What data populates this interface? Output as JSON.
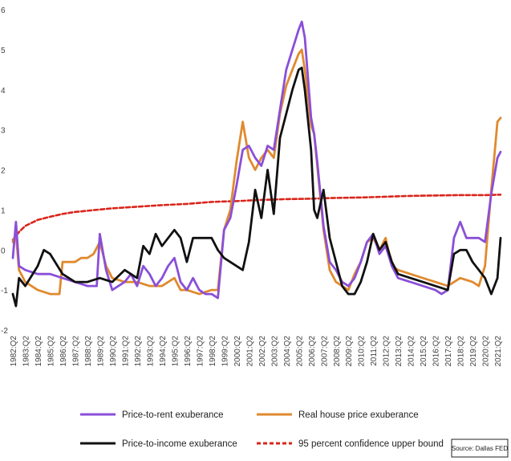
{
  "chart_data": {
    "type": "line",
    "title": "",
    "xlabel": "",
    "ylabel": "",
    "ylim": [
      -2,
      6
    ],
    "yticks": [
      "-2",
      "-1",
      "0",
      "1",
      "2",
      "3",
      "4",
      "5",
      "6"
    ],
    "grid": false,
    "legend_position": "bottom",
    "x_categories": [
      "1982:Q2",
      "1983:Q2",
      "1984:Q2",
      "1985:Q2",
      "1986:Q2",
      "1987:Q2",
      "1988:Q2",
      "1989:Q2",
      "1990:Q2",
      "1991:Q2",
      "1992:Q2",
      "1993:Q2",
      "1994:Q2",
      "1995:Q2",
      "1996:Q2",
      "1997:Q2",
      "1998:Q2",
      "1999:Q2",
      "2000:Q2",
      "2001:Q2",
      "2002:Q2",
      "2003:Q2",
      "2004:Q2",
      "2005:Q2",
      "2006:Q2",
      "2007:Q2",
      "2008:Q2",
      "2009:Q2",
      "2010:Q2",
      "2011:Q2",
      "2012:Q2",
      "2013:Q2",
      "2014:Q2",
      "2015:Q2",
      "2016:Q2",
      "2017:Q2",
      "2018:Q2",
      "2019:Q2",
      "2020:Q2",
      "2021:Q2"
    ],
    "series": [
      {
        "name": "Price-to-rent exuberance",
        "color": "#8a4fd8",
        "dash": "",
        "points": [
          [
            1982.0,
            -0.2
          ],
          [
            1982.25,
            0.7
          ],
          [
            1982.5,
            -0.4
          ],
          [
            1983.0,
            -0.5
          ],
          [
            1984.0,
            -0.6
          ],
          [
            1985.0,
            -0.6
          ],
          [
            1986.0,
            -0.7
          ],
          [
            1987.0,
            -0.8
          ],
          [
            1988.0,
            -0.9
          ],
          [
            1988.75,
            -0.9
          ],
          [
            1989.0,
            0.4
          ],
          [
            1989.5,
            -0.5
          ],
          [
            1990.0,
            -1.0
          ],
          [
            1991.0,
            -0.8
          ],
          [
            1991.5,
            -0.6
          ],
          [
            1992.0,
            -0.9
          ],
          [
            1992.5,
            -0.4
          ],
          [
            1993.0,
            -0.6
          ],
          [
            1993.5,
            -0.9
          ],
          [
            1994.0,
            -0.7
          ],
          [
            1994.5,
            -0.4
          ],
          [
            1995.0,
            -0.2
          ],
          [
            1995.5,
            -0.8
          ],
          [
            1996.0,
            -1.0
          ],
          [
            1996.5,
            -0.7
          ],
          [
            1997.0,
            -1.0
          ],
          [
            1997.5,
            -1.1
          ],
          [
            1998.0,
            -1.1
          ],
          [
            1998.5,
            -1.2
          ],
          [
            1999.0,
            0.5
          ],
          [
            1999.5,
            0.8
          ],
          [
            2000.0,
            1.6
          ],
          [
            2000.5,
            2.5
          ],
          [
            2001.0,
            2.6
          ],
          [
            2001.5,
            2.3
          ],
          [
            2002.0,
            2.1
          ],
          [
            2002.5,
            2.6
          ],
          [
            2003.0,
            2.5
          ],
          [
            2003.5,
            3.5
          ],
          [
            2004.0,
            4.5
          ],
          [
            2004.5,
            5.0
          ],
          [
            2005.0,
            5.5
          ],
          [
            2005.25,
            5.7
          ],
          [
            2005.5,
            5.3
          ],
          [
            2006.0,
            3.3
          ],
          [
            2006.25,
            2.9
          ],
          [
            2006.5,
            2.2
          ],
          [
            2007.0,
            0.6
          ],
          [
            2007.5,
            -0.3
          ],
          [
            2008.0,
            -0.5
          ],
          [
            2008.5,
            -0.8
          ],
          [
            2009.0,
            -0.9
          ],
          [
            2009.5,
            -0.7
          ],
          [
            2010.0,
            -0.3
          ],
          [
            2010.5,
            0.2
          ],
          [
            2011.0,
            0.4
          ],
          [
            2011.5,
            -0.1
          ],
          [
            2012.0,
            0.1
          ],
          [
            2012.5,
            -0.4
          ],
          [
            2013.0,
            -0.7
          ],
          [
            2014.0,
            -0.8
          ],
          [
            2015.0,
            -0.9
          ],
          [
            2016.0,
            -1.0
          ],
          [
            2016.5,
            -1.1
          ],
          [
            2017.0,
            -1.0
          ],
          [
            2017.5,
            0.3
          ],
          [
            2018.0,
            0.7
          ],
          [
            2018.5,
            0.3
          ],
          [
            2019.0,
            0.3
          ],
          [
            2019.5,
            0.3
          ],
          [
            2020.0,
            0.2
          ],
          [
            2020.5,
            1.4
          ],
          [
            2021.0,
            2.3
          ],
          [
            2021.25,
            2.45
          ]
        ]
      },
      {
        "name": "Real house price exuberance",
        "color": "#e08a2e",
        "dash": "",
        "points": [
          [
            1982.0,
            0.2
          ],
          [
            1982.25,
            0.4
          ],
          [
            1982.5,
            -0.5
          ],
          [
            1983.0,
            -0.8
          ],
          [
            1984.0,
            -1.0
          ],
          [
            1985.0,
            -1.1
          ],
          [
            1985.75,
            -1.1
          ],
          [
            1986.0,
            -0.3
          ],
          [
            1987.0,
            -0.3
          ],
          [
            1987.5,
            -0.2
          ],
          [
            1988.0,
            -0.2
          ],
          [
            1988.5,
            -0.1
          ],
          [
            1989.0,
            0.2
          ],
          [
            1989.5,
            -0.4
          ],
          [
            1990.0,
            -0.7
          ],
          [
            1991.0,
            -0.8
          ],
          [
            1992.0,
            -0.8
          ],
          [
            1993.0,
            -0.9
          ],
          [
            1994.0,
            -0.9
          ],
          [
            1995.0,
            -0.7
          ],
          [
            1995.5,
            -1.0
          ],
          [
            1996.0,
            -1.0
          ],
          [
            1997.0,
            -1.1
          ],
          [
            1998.0,
            -1.0
          ],
          [
            1998.5,
            -1.0
          ],
          [
            1999.0,
            0.5
          ],
          [
            1999.5,
            1.0
          ],
          [
            2000.0,
            2.2
          ],
          [
            2000.5,
            3.2
          ],
          [
            2001.0,
            2.3
          ],
          [
            2001.5,
            2.0
          ],
          [
            2002.0,
            2.3
          ],
          [
            2002.5,
            2.5
          ],
          [
            2003.0,
            2.3
          ],
          [
            2003.5,
            3.4
          ],
          [
            2004.0,
            4.1
          ],
          [
            2004.5,
            4.5
          ],
          [
            2005.0,
            4.9
          ],
          [
            2005.25,
            5.0
          ],
          [
            2005.5,
            4.5
          ],
          [
            2006.0,
            3.1
          ],
          [
            2006.25,
            2.9
          ],
          [
            2006.5,
            2.1
          ],
          [
            2007.0,
            0.5
          ],
          [
            2007.5,
            -0.5
          ],
          [
            2008.0,
            -0.8
          ],
          [
            2008.5,
            -0.9
          ],
          [
            2009.0,
            -1.0
          ],
          [
            2009.5,
            -0.6
          ],
          [
            2010.0,
            -0.3
          ],
          [
            2010.5,
            0.2
          ],
          [
            2011.0,
            0.3
          ],
          [
            2011.5,
            0.0
          ],
          [
            2012.0,
            0.3
          ],
          [
            2012.5,
            -0.4
          ],
          [
            2013.0,
            -0.5
          ],
          [
            2014.0,
            -0.6
          ],
          [
            2015.0,
            -0.7
          ],
          [
            2016.0,
            -0.8
          ],
          [
            2017.0,
            -0.9
          ],
          [
            2018.0,
            -0.7
          ],
          [
            2019.0,
            -0.8
          ],
          [
            2019.5,
            -0.9
          ],
          [
            2020.0,
            -0.4
          ],
          [
            2020.5,
            1.5
          ],
          [
            2021.0,
            3.2
          ],
          [
            2021.25,
            3.3
          ]
        ]
      },
      {
        "name": "Price-to-income exuberance",
        "color": "#111111",
        "dash": "",
        "points": [
          [
            1982.0,
            -1.1
          ],
          [
            1982.25,
            -1.4
          ],
          [
            1982.5,
            -0.7
          ],
          [
            1983.0,
            -0.9
          ],
          [
            1984.0,
            -0.4
          ],
          [
            1984.5,
            0.0
          ],
          [
            1985.0,
            -0.1
          ],
          [
            1986.0,
            -0.6
          ],
          [
            1987.0,
            -0.8
          ],
          [
            1988.0,
            -0.8
          ],
          [
            1989.0,
            -0.7
          ],
          [
            1990.0,
            -0.8
          ],
          [
            1991.0,
            -0.5
          ],
          [
            1992.0,
            -0.7
          ],
          [
            1992.5,
            0.1
          ],
          [
            1993.0,
            -0.1
          ],
          [
            1993.5,
            0.4
          ],
          [
            1994.0,
            0.1
          ],
          [
            1995.0,
            0.5
          ],
          [
            1995.5,
            0.3
          ],
          [
            1996.0,
            -0.3
          ],
          [
            1996.5,
            0.3
          ],
          [
            1997.0,
            0.3
          ],
          [
            1998.0,
            0.3
          ],
          [
            1998.5,
            0.0
          ],
          [
            1999.0,
            -0.2
          ],
          [
            2000.0,
            -0.4
          ],
          [
            2000.5,
            -0.5
          ],
          [
            2001.0,
            0.2
          ],
          [
            2001.5,
            1.5
          ],
          [
            2002.0,
            0.8
          ],
          [
            2002.5,
            2.0
          ],
          [
            2003.0,
            0.9
          ],
          [
            2003.5,
            2.8
          ],
          [
            2004.0,
            3.4
          ],
          [
            2004.5,
            4.0
          ],
          [
            2005.0,
            4.5
          ],
          [
            2005.25,
            4.55
          ],
          [
            2005.5,
            4.0
          ],
          [
            2006.0,
            2.5
          ],
          [
            2006.25,
            1.0
          ],
          [
            2006.5,
            0.8
          ],
          [
            2007.0,
            1.5
          ],
          [
            2007.5,
            0.3
          ],
          [
            2008.0,
            -0.3
          ],
          [
            2008.5,
            -0.9
          ],
          [
            2009.0,
            -1.1
          ],
          [
            2009.5,
            -1.1
          ],
          [
            2010.0,
            -0.8
          ],
          [
            2010.5,
            -0.3
          ],
          [
            2011.0,
            0.4
          ],
          [
            2011.5,
            0.0
          ],
          [
            2012.0,
            0.2
          ],
          [
            2012.5,
            -0.3
          ],
          [
            2013.0,
            -0.6
          ],
          [
            2014.0,
            -0.7
          ],
          [
            2015.0,
            -0.8
          ],
          [
            2016.0,
            -0.9
          ],
          [
            2017.0,
            -1.0
          ],
          [
            2017.5,
            -0.1
          ],
          [
            2018.0,
            0.0
          ],
          [
            2018.5,
            0.0
          ],
          [
            2019.0,
            -0.3
          ],
          [
            2019.5,
            -0.5
          ],
          [
            2020.0,
            -0.7
          ],
          [
            2020.5,
            -1.1
          ],
          [
            2021.0,
            -0.7
          ],
          [
            2021.25,
            0.3
          ]
        ]
      },
      {
        "name": "95 percent confidence upper bound",
        "color": "#d9261c",
        "dash": "5,3",
        "points": [
          [
            1982.0,
            0.25
          ],
          [
            1982.5,
            0.45
          ],
          [
            1983.0,
            0.6
          ],
          [
            1984.0,
            0.75
          ],
          [
            1985.0,
            0.83
          ],
          [
            1986.0,
            0.9
          ],
          [
            1987.0,
            0.95
          ],
          [
            1988.0,
            0.98
          ],
          [
            1990.0,
            1.04
          ],
          [
            1992.0,
            1.08
          ],
          [
            1994.0,
            1.12
          ],
          [
            1996.0,
            1.15
          ],
          [
            1998.0,
            1.2
          ],
          [
            2000.0,
            1.22
          ],
          [
            2002.0,
            1.25
          ],
          [
            2004.0,
            1.27
          ],
          [
            2006.0,
            1.28
          ],
          [
            2008.0,
            1.3
          ],
          [
            2010.0,
            1.31
          ],
          [
            2012.0,
            1.33
          ],
          [
            2014.0,
            1.35
          ],
          [
            2016.0,
            1.36
          ],
          [
            2018.0,
            1.37
          ],
          [
            2020.0,
            1.37
          ],
          [
            2021.25,
            1.38
          ]
        ]
      }
    ],
    "source": "Source: Dallas FED"
  }
}
